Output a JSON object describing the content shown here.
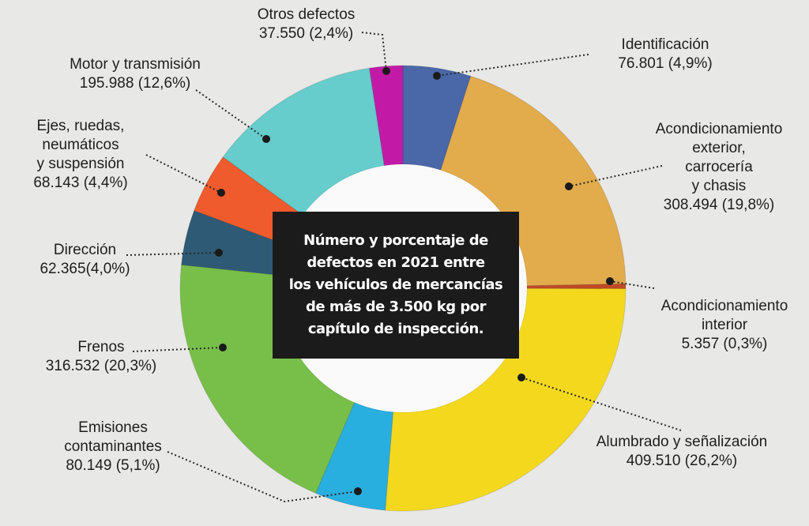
{
  "center_title_lines": [
    "Número y porcentaje de",
    "defectos en 2021 entre",
    "los vehículos de mercancías",
    "de más de 3.500 kg por",
    "capítulo de inspección."
  ],
  "chart_data": {
    "type": "pie",
    "variant": "donut",
    "title": "Número y porcentaje de defectos en 2021 entre los vehículos de mercancías de más de 3.500 kg por capítulo de inspección.",
    "slices": [
      {
        "label": "Identificación",
        "value": 76801,
        "value_text": "76.801",
        "percent_text": "(4,9%)",
        "percent": 4.9,
        "color": "#4a67a8"
      },
      {
        "label": "Acondicionamiento exterior, carrocería y chasis",
        "label_lines": [
          "Acondicionamiento",
          "exterior,",
          "carrocería",
          "y chasis"
        ],
        "value": 308494,
        "value_text": "308.494",
        "percent_text": "(19,8%)",
        "percent": 19.8,
        "color": "#e2ab4b"
      },
      {
        "label": "Acondicionamiento interior",
        "label_lines": [
          "Acondicionamiento",
          "interior"
        ],
        "value": 5357,
        "value_text": "5.357",
        "percent_text": "(0,3%)",
        "percent": 0.3,
        "color": "#c04a28"
      },
      {
        "label": "Alumbrado y señalización",
        "value": 409510,
        "value_text": "409.510",
        "percent_text": "(26,2%)",
        "percent": 26.2,
        "color": "#f4d81e"
      },
      {
        "label": "Emisiones contaminantes",
        "label_lines": [
          "Emisiones",
          "contaminantes"
        ],
        "value": 80149,
        "value_text": "80.149",
        "percent_text": "(5,1%)",
        "percent": 5.1,
        "color": "#29aee0"
      },
      {
        "label": "Frenos",
        "value": 316532,
        "value_text": "316.532",
        "percent_text": "(20,3%)",
        "percent": 20.3,
        "color": "#78bf4a"
      },
      {
        "label": "Dirección",
        "value": 62365,
        "value_text": "62.365",
        "percent_text": "(4,0%)",
        "percent": 4.0,
        "color": "#2e5a76"
      },
      {
        "label": "Ejes, ruedas, neumáticos y suspensión",
        "label_lines": [
          "Ejes, ruedas,",
          "neumáticos",
          "y suspensión"
        ],
        "value": 68143,
        "value_text": "68.143",
        "percent_text": "(4,4%)",
        "percent": 4.4,
        "color": "#ef5b2c"
      },
      {
        "label": "Motor y transmisión",
        "value": 195988,
        "value_text": "195.988",
        "percent_text": "(12,6%)",
        "percent": 12.6,
        "color": "#66cccc"
      },
      {
        "label": "Otros defectos",
        "value": 37550,
        "value_text": "37.550",
        "percent_text": "(2,4%)",
        "percent": 2.4,
        "color": "#c21aa6"
      }
    ]
  }
}
